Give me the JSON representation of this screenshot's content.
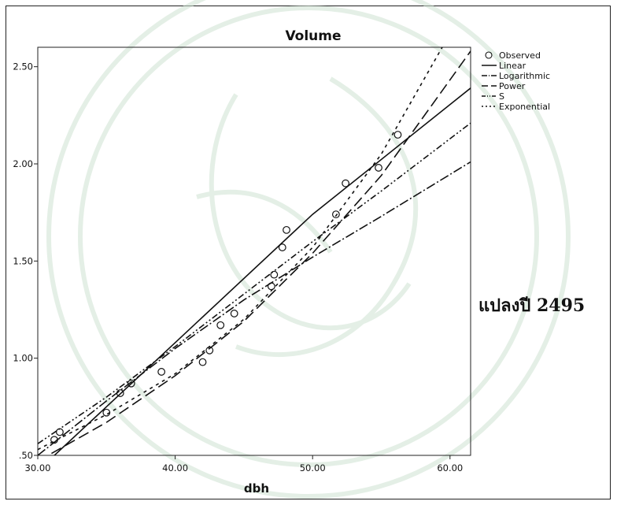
{
  "side_note": "แปลงปี 2495",
  "chart_data": {
    "type": "scatter",
    "title": "Volume",
    "xlabel": "dbh",
    "ylabel": "",
    "xlim": [
      30,
      61.5
    ],
    "ylim": [
      0.5,
      2.6
    ],
    "x_ticks": [
      {
        "value": 30,
        "label": "30.00"
      },
      {
        "value": 40,
        "label": "40.00"
      },
      {
        "value": 50,
        "label": "50.00"
      },
      {
        "value": 60,
        "label": "60.00"
      }
    ],
    "y_ticks": [
      {
        "value": 0.5,
        "label": ".50"
      },
      {
        "value": 1.0,
        "label": "1.00"
      },
      {
        "value": 1.5,
        "label": "1.50"
      },
      {
        "value": 2.0,
        "label": "2.00"
      },
      {
        "value": 2.5,
        "label": "2.50"
      }
    ],
    "grid": false,
    "legend_position": "top-right, outside plot",
    "observed": {
      "name": "Observed",
      "points": [
        [
          31.2,
          0.58
        ],
        [
          31.6,
          0.62
        ],
        [
          35.0,
          0.72
        ],
        [
          36.0,
          0.82
        ],
        [
          36.8,
          0.87
        ],
        [
          39.0,
          0.93
        ],
        [
          42.0,
          0.98
        ],
        [
          42.5,
          1.04
        ],
        [
          43.3,
          1.17
        ],
        [
          44.3,
          1.23
        ],
        [
          47.0,
          1.37
        ],
        [
          47.2,
          1.43
        ],
        [
          47.8,
          1.57
        ],
        [
          48.1,
          1.66
        ],
        [
          51.7,
          1.74
        ],
        [
          52.4,
          1.9
        ],
        [
          54.8,
          1.98
        ],
        [
          56.2,
          2.15
        ]
      ]
    },
    "series": [
      {
        "name": "Linear",
        "dash": "",
        "points": [
          [
            30,
            0.42
          ],
          [
            40,
            1.08
          ],
          [
            50,
            1.74
          ],
          [
            61.5,
            2.39
          ]
        ]
      },
      {
        "name": "Logarithmic",
        "dash": "12 3 2 3",
        "points": [
          [
            30,
            0.5
          ],
          [
            35,
            0.78
          ],
          [
            40,
            1.05
          ],
          [
            45,
            1.3
          ],
          [
            50,
            1.52
          ],
          [
            55,
            1.73
          ],
          [
            61.5,
            2.01
          ]
        ]
      },
      {
        "name": "Power",
        "dash": "14 6",
        "points": [
          [
            30,
            0.47
          ],
          [
            35,
            0.67
          ],
          [
            40,
            0.91
          ],
          [
            45,
            1.19
          ],
          [
            50,
            1.54
          ],
          [
            55,
            1.94
          ],
          [
            61.5,
            2.58
          ]
        ]
      },
      {
        "name": "S",
        "dash": "8 3 2 3 2 3",
        "points": [
          [
            30,
            0.56
          ],
          [
            35,
            0.8
          ],
          [
            40,
            1.06
          ],
          [
            45,
            1.33
          ],
          [
            50,
            1.6
          ],
          [
            55,
            1.86
          ],
          [
            61.5,
            2.21
          ]
        ]
      },
      {
        "name": "Exponential",
        "dash": "4 5",
        "points": [
          [
            30,
            0.53
          ],
          [
            35,
            0.71
          ],
          [
            40,
            0.92
          ],
          [
            45,
            1.2
          ],
          [
            50,
            1.57
          ],
          [
            55,
            2.05
          ],
          [
            60,
            2.67
          ]
        ]
      }
    ]
  }
}
